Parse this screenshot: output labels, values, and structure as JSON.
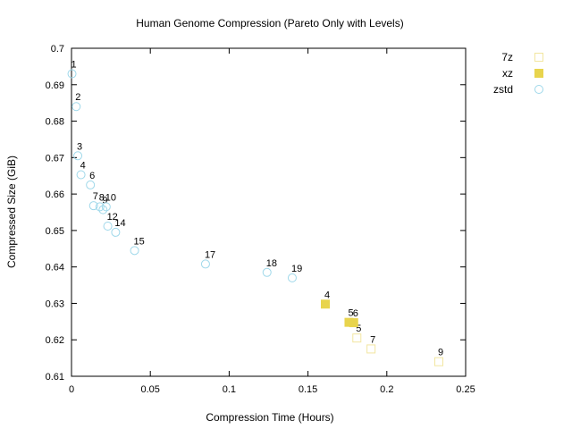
{
  "chart_data": {
    "type": "scatter",
    "title": "Human Genome Compression (Pareto Only with Levels)",
    "xlabel": "Compression Time (Hours)",
    "ylabel": "Compressed Size (GiB)",
    "xlim": [
      0,
      0.25
    ],
    "ylim": [
      0.61,
      0.7
    ],
    "x_ticks": [
      "0",
      "0.05",
      "0.1",
      "0.15",
      "0.2",
      "0.25"
    ],
    "y_ticks": [
      "0.61",
      "0.62",
      "0.63",
      "0.64",
      "0.65",
      "0.66",
      "0.67",
      "0.68",
      "0.69",
      "0.7"
    ],
    "grid": false,
    "legend_position": "outside-right",
    "series": [
      {
        "name": "7z",
        "marker": "open-square",
        "color": "#f2e6a0",
        "points": [
          {
            "x": 0.181,
            "y": 0.6205,
            "label": "5"
          },
          {
            "x": 0.19,
            "y": 0.6175,
            "label": "7"
          },
          {
            "x": 0.233,
            "y": 0.614,
            "label": "9"
          }
        ]
      },
      {
        "name": "xz",
        "marker": "filled-square",
        "color": "#e8d44d",
        "points": [
          {
            "x": 0.161,
            "y": 0.6298,
            "label": "4"
          },
          {
            "x": 0.176,
            "y": 0.6248,
            "label": "5"
          },
          {
            "x": 0.179,
            "y": 0.6247,
            "label": "6"
          }
        ]
      },
      {
        "name": "zstd",
        "marker": "open-circle",
        "color": "#9fd8ea",
        "points": [
          {
            "x": 0.0003,
            "y": 0.693,
            "label": "1"
          },
          {
            "x": 0.003,
            "y": 0.684,
            "label": "2"
          },
          {
            "x": 0.004,
            "y": 0.6705,
            "label": "3"
          },
          {
            "x": 0.006,
            "y": 0.6653,
            "label": "4"
          },
          {
            "x": 0.012,
            "y": 0.6625,
            "label": "6"
          },
          {
            "x": 0.014,
            "y": 0.6568,
            "label": "7"
          },
          {
            "x": 0.018,
            "y": 0.6565,
            "label": "8"
          },
          {
            "x": 0.02,
            "y": 0.6557,
            "label": "9"
          },
          {
            "x": 0.022,
            "y": 0.6565,
            "label": "10"
          },
          {
            "x": 0.023,
            "y": 0.6512,
            "label": "12"
          },
          {
            "x": 0.028,
            "y": 0.6495,
            "label": "14"
          },
          {
            "x": 0.04,
            "y": 0.6445,
            "label": "15"
          },
          {
            "x": 0.085,
            "y": 0.6408,
            "label": "17"
          },
          {
            "x": 0.124,
            "y": 0.6385,
            "label": "18"
          },
          {
            "x": 0.14,
            "y": 0.637,
            "label": "19"
          }
        ]
      }
    ]
  }
}
